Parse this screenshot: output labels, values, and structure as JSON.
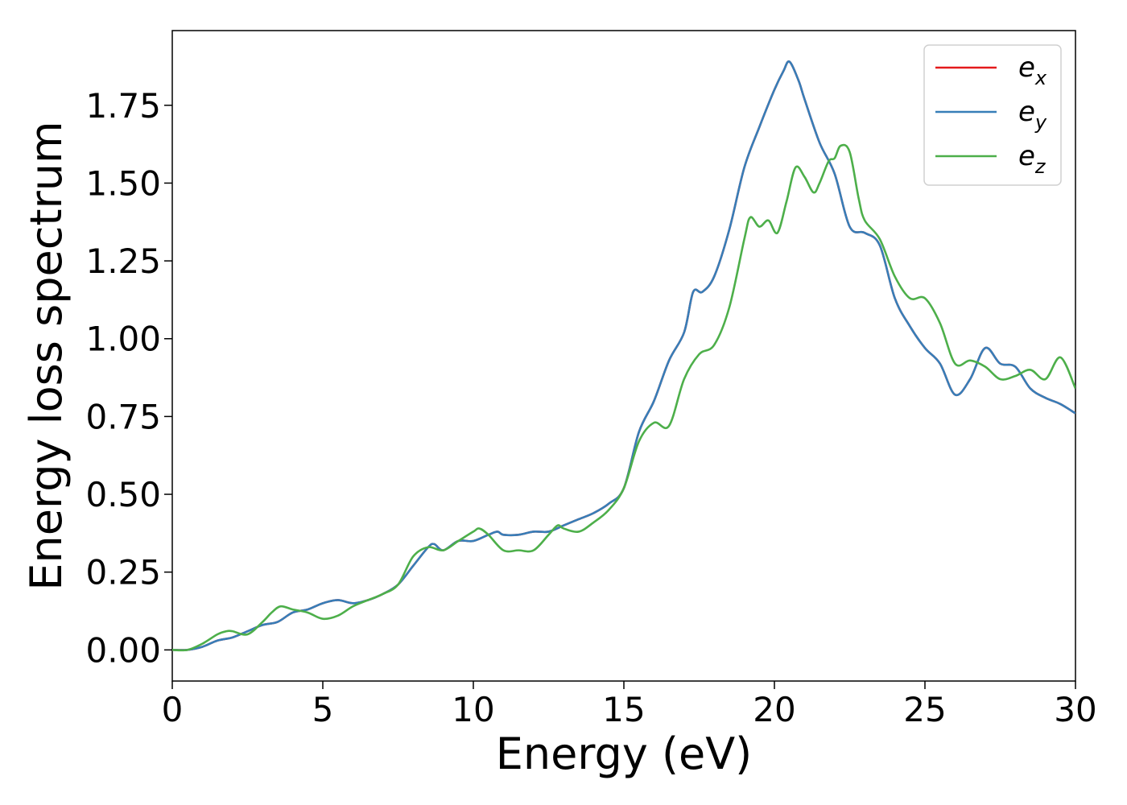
{
  "chart_data": {
    "type": "line",
    "title": "",
    "xlabel": "Energy (eV)",
    "ylabel": "Energy loss spectrum",
    "xlim": [
      0,
      30
    ],
    "ylim": [
      -0.1,
      1.99
    ],
    "xticks": [
      0,
      5,
      10,
      15,
      20,
      25,
      30
    ],
    "yticks": [
      0.0,
      0.25,
      0.5,
      0.75,
      1.0,
      1.25,
      1.5,
      1.75
    ],
    "ytick_labels": [
      "0.00",
      "0.25",
      "0.50",
      "0.75",
      "1.00",
      "1.25",
      "1.50",
      "1.75"
    ],
    "grid": false,
    "legend_position": "top-right",
    "series": [
      {
        "name": "e_x",
        "legend": {
          "base": "e",
          "sub": "x"
        },
        "color": "#e41a1c",
        "x": [
          0,
          0.5,
          1,
          1.5,
          2,
          2.5,
          3,
          3.5,
          4,
          4.5,
          5,
          5.5,
          6,
          6.5,
          7,
          7.5,
          8,
          8.5,
          8.7,
          9,
          9.5,
          10,
          10.5,
          10.8,
          11,
          11.5,
          12,
          12.5,
          13,
          13.5,
          14,
          14.5,
          15,
          15.5,
          16,
          16.5,
          17,
          17.3,
          17.6,
          18,
          18.5,
          19,
          19.5,
          20,
          20.3,
          20.5,
          20.8,
          21,
          21.5,
          22,
          22.5,
          23,
          23.5,
          24,
          24.5,
          25,
          25.5,
          26,
          26.5,
          27,
          27.5,
          28,
          28.5,
          29,
          29.5,
          30
        ],
        "y": [
          0.0,
          0.0,
          0.01,
          0.03,
          0.04,
          0.06,
          0.08,
          0.09,
          0.12,
          0.13,
          0.15,
          0.16,
          0.15,
          0.16,
          0.18,
          0.21,
          0.27,
          0.33,
          0.34,
          0.32,
          0.35,
          0.35,
          0.37,
          0.38,
          0.37,
          0.37,
          0.38,
          0.38,
          0.4,
          0.42,
          0.44,
          0.47,
          0.52,
          0.7,
          0.8,
          0.93,
          1.02,
          1.15,
          1.15,
          1.2,
          1.35,
          1.55,
          1.68,
          1.8,
          1.86,
          1.89,
          1.83,
          1.77,
          1.63,
          1.53,
          1.36,
          1.34,
          1.3,
          1.13,
          1.04,
          0.97,
          0.92,
          0.82,
          0.87,
          0.97,
          0.92,
          0.91,
          0.84,
          0.81,
          0.79,
          0.76
        ]
      },
      {
        "name": "e_y",
        "legend": {
          "base": "e",
          "sub": "y"
        },
        "color": "#377eb8",
        "x": [
          0,
          0.5,
          1,
          1.5,
          2,
          2.5,
          3,
          3.5,
          4,
          4.5,
          5,
          5.5,
          6,
          6.5,
          7,
          7.5,
          8,
          8.5,
          8.7,
          9,
          9.5,
          10,
          10.5,
          10.8,
          11,
          11.5,
          12,
          12.5,
          13,
          13.5,
          14,
          14.5,
          15,
          15.5,
          16,
          16.5,
          17,
          17.3,
          17.6,
          18,
          18.5,
          19,
          19.5,
          20,
          20.3,
          20.5,
          20.8,
          21,
          21.5,
          22,
          22.5,
          23,
          23.5,
          24,
          24.5,
          25,
          25.5,
          26,
          26.5,
          27,
          27.5,
          28,
          28.5,
          29,
          29.5,
          30
        ],
        "y": [
          0.0,
          0.0,
          0.01,
          0.03,
          0.04,
          0.06,
          0.08,
          0.09,
          0.12,
          0.13,
          0.15,
          0.16,
          0.15,
          0.16,
          0.18,
          0.21,
          0.27,
          0.33,
          0.34,
          0.32,
          0.35,
          0.35,
          0.37,
          0.38,
          0.37,
          0.37,
          0.38,
          0.38,
          0.4,
          0.42,
          0.44,
          0.47,
          0.52,
          0.7,
          0.8,
          0.93,
          1.02,
          1.15,
          1.15,
          1.2,
          1.35,
          1.55,
          1.68,
          1.8,
          1.86,
          1.89,
          1.83,
          1.77,
          1.63,
          1.53,
          1.36,
          1.34,
          1.3,
          1.13,
          1.04,
          0.97,
          0.92,
          0.82,
          0.87,
          0.97,
          0.92,
          0.91,
          0.84,
          0.81,
          0.79,
          0.76
        ]
      },
      {
        "name": "e_z",
        "legend": {
          "base": "e",
          "sub": "z"
        },
        "color": "#4daf4a",
        "x": [
          0,
          0.5,
          1,
          1.5,
          1.8,
          2,
          2.5,
          3,
          3.3,
          3.6,
          4,
          4.5,
          5,
          5.5,
          6,
          6.5,
          7,
          7.5,
          8,
          8.5,
          9,
          9.5,
          10,
          10.2,
          10.5,
          11,
          11.5,
          12,
          12.5,
          12.8,
          13,
          13.5,
          14,
          14.5,
          15,
          15.5,
          16,
          16.5,
          17,
          17.5,
          18,
          18.5,
          19,
          19.2,
          19.5,
          19.8,
          20.1,
          20.4,
          20.7,
          21,
          21.3,
          21.5,
          21.8,
          22,
          22.2,
          22.5,
          22.8,
          23,
          23.5,
          24,
          24.5,
          25,
          25.5,
          26,
          26.5,
          27,
          27.5,
          28,
          28.5,
          29,
          29.5,
          30
        ],
        "y": [
          0.0,
          0.0,
          0.02,
          0.05,
          0.06,
          0.06,
          0.05,
          0.09,
          0.12,
          0.14,
          0.13,
          0.12,
          0.1,
          0.11,
          0.14,
          0.16,
          0.18,
          0.21,
          0.3,
          0.33,
          0.32,
          0.35,
          0.38,
          0.39,
          0.37,
          0.32,
          0.32,
          0.32,
          0.37,
          0.4,
          0.39,
          0.38,
          0.41,
          0.45,
          0.52,
          0.67,
          0.73,
          0.72,
          0.87,
          0.95,
          0.98,
          1.1,
          1.32,
          1.39,
          1.36,
          1.38,
          1.34,
          1.44,
          1.55,
          1.52,
          1.47,
          1.5,
          1.57,
          1.58,
          1.62,
          1.6,
          1.45,
          1.38,
          1.32,
          1.2,
          1.13,
          1.13,
          1.05,
          0.92,
          0.93,
          0.91,
          0.87,
          0.88,
          0.9,
          0.87,
          0.94,
          0.84
        ]
      }
    ]
  }
}
